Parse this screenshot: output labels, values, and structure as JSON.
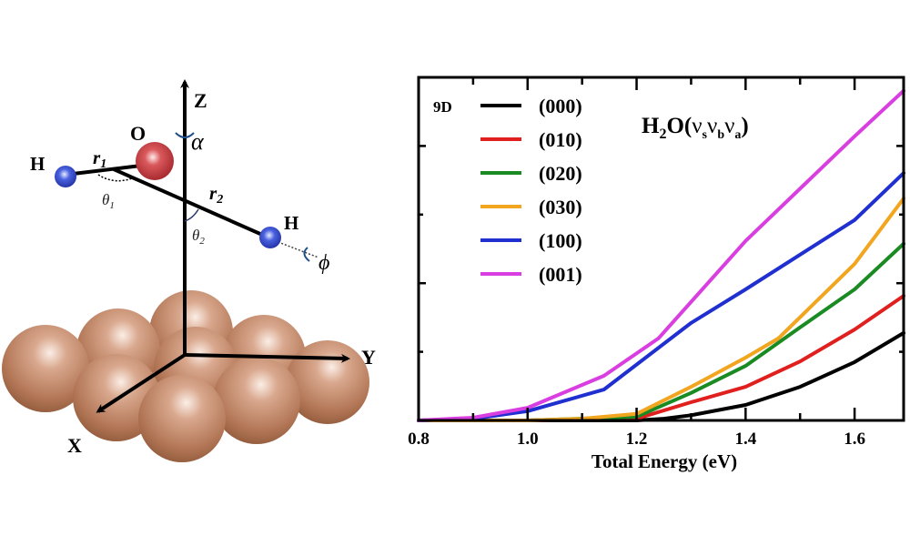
{
  "diagram": {
    "axis_labels": {
      "z": "Z",
      "y": "Y",
      "x": "X"
    },
    "atoms": {
      "oxygen": "O",
      "hydrogen_left": "H",
      "hydrogen_right": "H"
    },
    "coordinates": {
      "r1": "r",
      "r1_sub": "1",
      "r2": "r",
      "r2_sub": "2",
      "theta1": "θ",
      "theta1_sub": "1",
      "theta2": "θ",
      "theta2_sub": "2",
      "alpha": "α",
      "phi": "ϕ"
    },
    "colors": {
      "oxygen": "#c0353a",
      "hydrogen": "#2b3fc4",
      "surface": "#b07454"
    }
  },
  "chart_data": {
    "type": "line",
    "title": "",
    "annotation": "H2O(νs νb νa)",
    "annotation_parts": {
      "h": "H",
      "two": "2",
      "o": "O(",
      "nu": "ν",
      "s": "s",
      "b": "b",
      "a": "a",
      "close": ")"
    },
    "legend_title": "9D",
    "legend_position": "upper-left",
    "xlabel": "Total Energy (eV)",
    "ylabel": "",
    "xlim": [
      0.8,
      1.69
    ],
    "ylim": [
      0,
      1
    ],
    "xticks": [
      "0.8",
      "1.0",
      "1.2",
      "1.4",
      "1.6"
    ],
    "grid": false,
    "series": [
      {
        "name": "(000)",
        "color": "#000000",
        "x": [
          0.8,
          1.0,
          1.2,
          1.25,
          1.3,
          1.4,
          1.5,
          1.6,
          1.69
        ],
        "values": [
          0,
          0,
          0,
          0.005,
          0.015,
          0.045,
          0.098,
          0.17,
          0.255
        ]
      },
      {
        "name": "(010)",
        "color": "#e0201e",
        "x": [
          0.8,
          1.0,
          1.2,
          1.3,
          1.4,
          1.5,
          1.6,
          1.69
        ],
        "values": [
          0,
          0,
          0.005,
          0.053,
          0.098,
          0.172,
          0.265,
          0.363
        ]
      },
      {
        "name": "(020)",
        "color": "#1a8a22",
        "x": [
          0.8,
          1.0,
          1.2,
          1.3,
          1.4,
          1.5,
          1.6,
          1.69
        ],
        "values": [
          0,
          0,
          0.011,
          0.08,
          0.159,
          0.271,
          0.382,
          0.515
        ]
      },
      {
        "name": "(030)",
        "color": "#f2a51e",
        "x": [
          0.8,
          1.0,
          1.1,
          1.2,
          1.3,
          1.4,
          1.46,
          1.6,
          1.69
        ],
        "values": [
          0,
          0,
          0.005,
          0.019,
          0.098,
          0.183,
          0.239,
          0.456,
          0.647
        ]
      },
      {
        "name": "(100)",
        "color": "#1f2fd0",
        "x": [
          0.8,
          0.9,
          1.0,
          1.14,
          1.3,
          1.4,
          1.6,
          1.69
        ],
        "values": [
          0,
          0.005,
          0.027,
          0.09,
          0.284,
          0.382,
          0.584,
          0.721
        ]
      },
      {
        "name": "(001)",
        "color": "#d93ee0",
        "x": [
          0.8,
          0.9,
          1.0,
          1.14,
          1.24,
          1.4,
          1.6,
          1.69
        ],
        "values": [
          0,
          0.008,
          0.037,
          0.13,
          0.239,
          0.523,
          0.828,
          0.961
        ]
      }
    ]
  }
}
